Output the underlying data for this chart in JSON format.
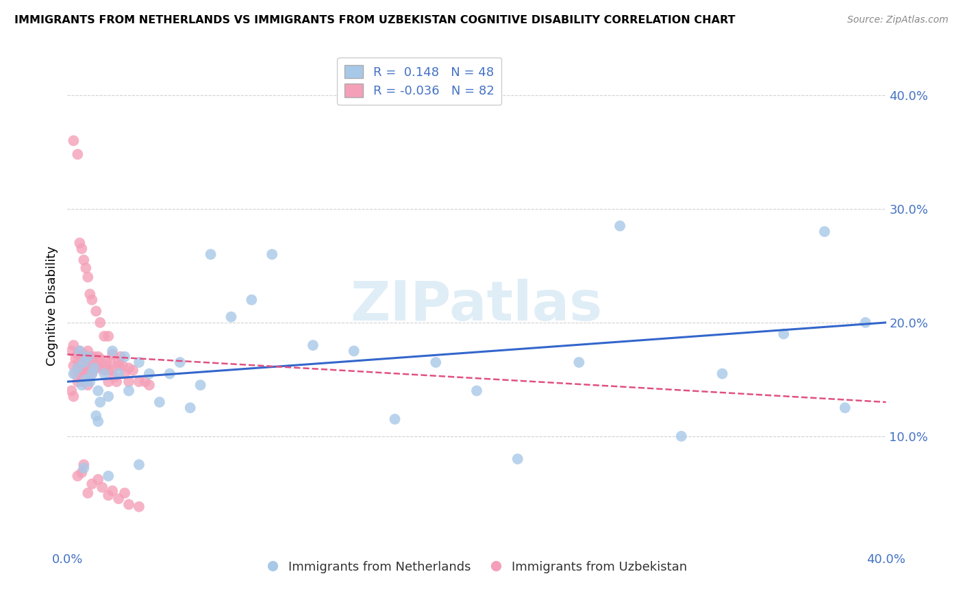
{
  "title": "IMMIGRANTS FROM NETHERLANDS VS IMMIGRANTS FROM UZBEKISTAN COGNITIVE DISABILITY CORRELATION CHART",
  "source": "Source: ZipAtlas.com",
  "ylabel": "Cognitive Disability",
  "xlim": [
    0,
    0.4
  ],
  "ylim": [
    0,
    0.43
  ],
  "yticks": [
    0.1,
    0.2,
    0.3,
    0.4
  ],
  "ytick_labels": [
    "10.0%",
    "20.0%",
    "30.0%",
    "40.0%"
  ],
  "xtick_labels": [
    "0.0%",
    "",
    "",
    "",
    "40.0%"
  ],
  "legend_r1": "R =  0.148",
  "legend_n1": "N = 48",
  "legend_r2": "R = -0.036",
  "legend_n2": "N = 82",
  "blue_color": "#a8c8e8",
  "pink_color": "#f4a0b8",
  "blue_line_color": "#3366cc",
  "pink_line_color": "#e05080",
  "watermark_color": "#c8dff0",
  "neth_x": [
    0.003,
    0.005,
    0.006,
    0.007,
    0.008,
    0.009,
    0.01,
    0.011,
    0.012,
    0.013,
    0.014,
    0.015,
    0.016,
    0.018,
    0.02,
    0.022,
    0.025,
    0.028,
    0.03,
    0.035,
    0.04,
    0.045,
    0.05,
    0.055,
    0.06,
    0.065,
    0.07,
    0.08,
    0.09,
    0.1,
    0.12,
    0.14,
    0.16,
    0.18,
    0.2,
    0.22,
    0.25,
    0.27,
    0.3,
    0.32,
    0.35,
    0.37,
    0.38,
    0.39,
    0.008,
    0.015,
    0.02,
    0.035
  ],
  "neth_y": [
    0.155,
    0.16,
    0.175,
    0.145,
    0.165,
    0.15,
    0.17,
    0.148,
    0.155,
    0.16,
    0.118,
    0.14,
    0.13,
    0.155,
    0.135,
    0.175,
    0.155,
    0.17,
    0.14,
    0.165,
    0.155,
    0.13,
    0.155,
    0.165,
    0.125,
    0.145,
    0.26,
    0.205,
    0.22,
    0.26,
    0.18,
    0.175,
    0.115,
    0.165,
    0.14,
    0.08,
    0.165,
    0.285,
    0.1,
    0.155,
    0.19,
    0.28,
    0.125,
    0.2,
    0.072,
    0.113,
    0.065,
    0.075
  ],
  "uzb_x": [
    0.002,
    0.003,
    0.003,
    0.004,
    0.004,
    0.005,
    0.005,
    0.005,
    0.006,
    0.006,
    0.006,
    0.007,
    0.007,
    0.007,
    0.008,
    0.008,
    0.008,
    0.009,
    0.009,
    0.01,
    0.01,
    0.01,
    0.01,
    0.011,
    0.011,
    0.012,
    0.012,
    0.013,
    0.013,
    0.014,
    0.015,
    0.015,
    0.016,
    0.017,
    0.018,
    0.019,
    0.02,
    0.02,
    0.021,
    0.022,
    0.023,
    0.024,
    0.025,
    0.026,
    0.027,
    0.028,
    0.03,
    0.032,
    0.035,
    0.038,
    0.04,
    0.003,
    0.005,
    0.006,
    0.007,
    0.008,
    0.009,
    0.01,
    0.011,
    0.012,
    0.014,
    0.016,
    0.018,
    0.02,
    0.022,
    0.025,
    0.03,
    0.005,
    0.007,
    0.008,
    0.01,
    0.012,
    0.015,
    0.017,
    0.02,
    0.022,
    0.025,
    0.028,
    0.03,
    0.035,
    0.002,
    0.003
  ],
  "uzb_y": [
    0.175,
    0.162,
    0.18,
    0.168,
    0.155,
    0.172,
    0.16,
    0.148,
    0.175,
    0.165,
    0.155,
    0.17,
    0.158,
    0.148,
    0.172,
    0.16,
    0.152,
    0.168,
    0.158,
    0.175,
    0.165,
    0.155,
    0.145,
    0.17,
    0.16,
    0.165,
    0.155,
    0.17,
    0.16,
    0.163,
    0.17,
    0.16,
    0.168,
    0.162,
    0.158,
    0.165,
    0.158,
    0.148,
    0.165,
    0.158,
    0.152,
    0.148,
    0.162,
    0.17,
    0.162,
    0.155,
    0.16,
    0.158,
    0.148,
    0.148,
    0.145,
    0.36,
    0.348,
    0.27,
    0.265,
    0.255,
    0.248,
    0.24,
    0.225,
    0.22,
    0.21,
    0.2,
    0.188,
    0.188,
    0.172,
    0.165,
    0.148,
    0.065,
    0.068,
    0.075,
    0.05,
    0.058,
    0.062,
    0.055,
    0.048,
    0.052,
    0.045,
    0.05,
    0.04,
    0.038,
    0.14,
    0.135
  ]
}
